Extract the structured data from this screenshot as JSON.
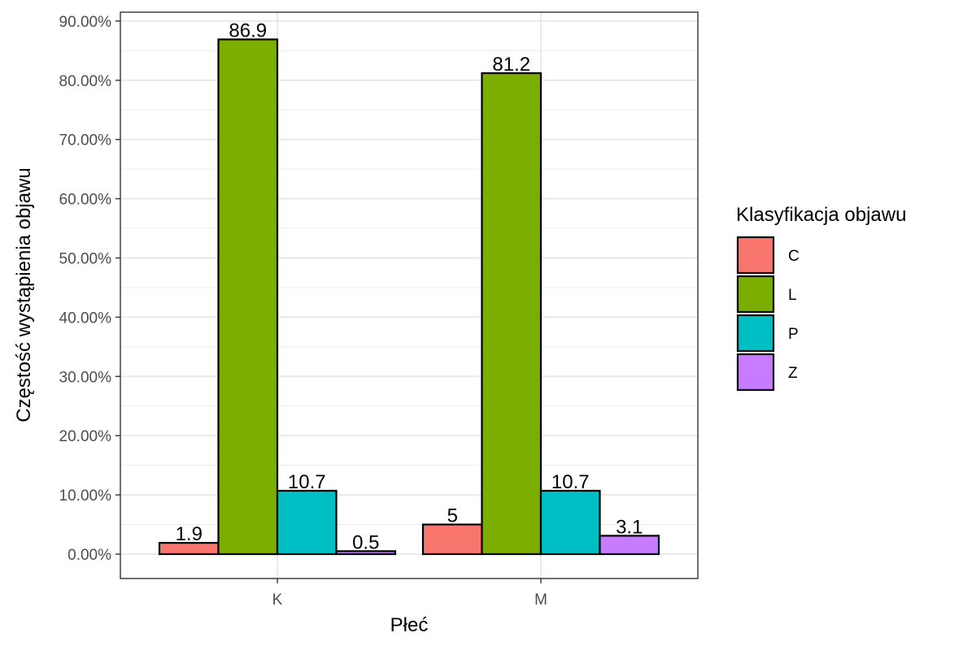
{
  "chart_data": {
    "type": "bar",
    "title": "",
    "xlabel": "Płeć",
    "ylabel": "Częstość wystąpienia objawu",
    "categories": [
      "K",
      "M"
    ],
    "ylim": [
      0,
      91
    ],
    "y_ticks": [
      0,
      10,
      20,
      30,
      40,
      50,
      60,
      70,
      80,
      90
    ],
    "y_tick_labels": [
      "0.00%",
      "10.00%",
      "20.00%",
      "30.00%",
      "40.00%",
      "50.00%",
      "60.00%",
      "70.00%",
      "80.00%",
      "90.00%"
    ],
    "grid": true,
    "legend": {
      "title": "Klasyfikacja objawu",
      "placement": "right"
    },
    "series": [
      {
        "name": "C",
        "color": "#F8766D",
        "values": [
          1.9,
          5
        ],
        "labels": [
          "1.9",
          "5"
        ]
      },
      {
        "name": "L",
        "color": "#7CAE00",
        "values": [
          86.9,
          81.2
        ],
        "labels": [
          "86.9",
          "81.2"
        ]
      },
      {
        "name": "P",
        "color": "#00BFC4",
        "values": [
          10.7,
          10.7
        ],
        "labels": [
          "10.7",
          "10.7"
        ]
      },
      {
        "name": "Z",
        "color": "#C77CFF",
        "values": [
          0.5,
          3.1
        ],
        "labels": [
          "0.5",
          "3.1"
        ]
      }
    ]
  }
}
